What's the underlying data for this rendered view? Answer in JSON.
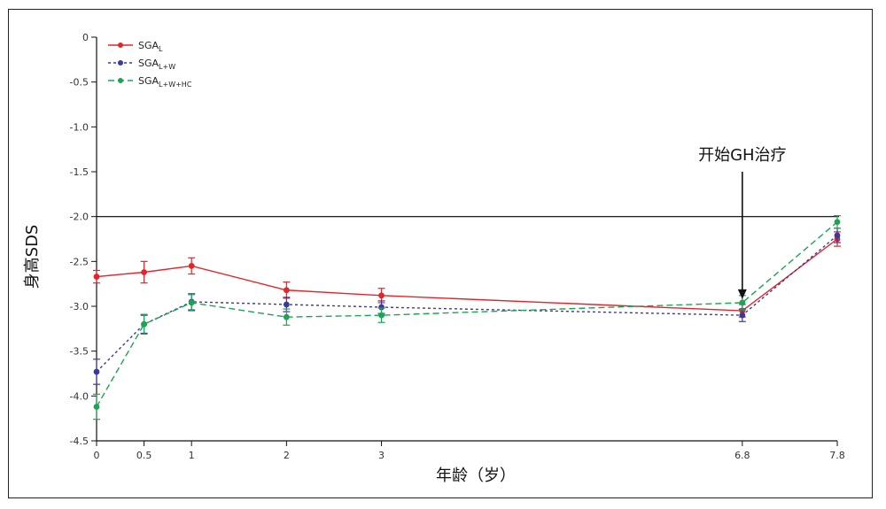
{
  "chart_data": {
    "type": "line",
    "xlabel": "年龄（岁）",
    "ylabel": "身高SDS",
    "xlim": [
      0,
      7.8
    ],
    "ylim": [
      -4.5,
      0
    ],
    "x_ticks": [
      0,
      0.5,
      1,
      2,
      3,
      6.8,
      7.8
    ],
    "x_tick_labels": [
      "0",
      "0.5",
      "1",
      "2",
      "3",
      "6.8",
      "7.8"
    ],
    "y_ticks": [
      0,
      -0.5,
      -1.0,
      -1.5,
      -2.0,
      -2.5,
      -3.0,
      -3.5,
      -4.0,
      -4.5
    ],
    "y_tick_labels": [
      "0",
      "-0.5",
      "-1.0",
      "-1.5",
      "-2.0",
      "-2.5",
      "-3.0",
      "-3.5",
      "-4.0",
      "-4.5"
    ],
    "reference_line": {
      "y": -2.0,
      "color": "#000000"
    },
    "legend_position": "top-left",
    "annotation": {
      "text": "开始GH治疗",
      "x": 6.8,
      "arrow_to_y": -2.92
    },
    "x": [
      0,
      0.5,
      1,
      2,
      3,
      6.8,
      7.8
    ],
    "series": [
      {
        "name_base": "SGA",
        "name_sub": "L",
        "color": "#e3242b",
        "dash": "solid",
        "values": [
          -2.67,
          -2.62,
          -2.55,
          -2.82,
          -2.88,
          -3.05,
          -2.25
        ],
        "errors": [
          0.07,
          0.12,
          0.09,
          0.09,
          0.08,
          0.07,
          0.08
        ]
      },
      {
        "name_base": "SGA",
        "name_sub": "L+W",
        "color": "#3a3a9c",
        "dash": "dotted",
        "values": [
          -3.73,
          -3.2,
          -2.95,
          -2.98,
          -3.01,
          -3.1,
          -2.21
        ],
        "errors": [
          0.14,
          0.1,
          0.09,
          0.08,
          0.07,
          0.07,
          0.08
        ]
      },
      {
        "name_base": "SGA",
        "name_sub": "L+W+HC",
        "color": "#1ea355",
        "dash": "dashed",
        "values": [
          -4.12,
          -3.2,
          -2.96,
          -3.12,
          -3.1,
          -2.96,
          -2.06
        ],
        "errors": [
          0.14,
          0.11,
          0.09,
          0.09,
          0.08,
          0.08,
          0.07
        ]
      }
    ]
  }
}
